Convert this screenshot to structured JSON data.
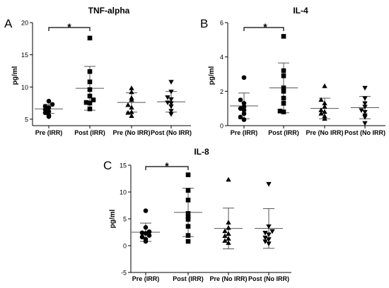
{
  "chart_data": [
    {
      "panel_label": "A",
      "title": "TNF-alpha",
      "type": "scatter",
      "ylabel": "pg/ml",
      "ylim": [
        4,
        20
      ],
      "yticks": [
        5,
        10,
        15,
        20
      ],
      "categories": [
        "Pre (IRR)",
        "Post (IRR)",
        "Pre (No IRR)",
        "Post (No IRR)"
      ],
      "markers": [
        "circle",
        "square",
        "triangle-up",
        "triangle-down"
      ],
      "series": [
        {
          "values": [
            5.4,
            5.6,
            6.0,
            6.2,
            6.5,
            6.8,
            7.0,
            7.3,
            7.8
          ],
          "mean": 6.6,
          "sd": 0.7
        },
        {
          "values": [
            6.6,
            7.5,
            7.6,
            8.0,
            8.6,
            9.6,
            10.8,
            12.4,
            17.6
          ],
          "mean": 9.8,
          "sd": 3.4
        },
        {
          "values": [
            5.5,
            6.0,
            6.1,
            6.8,
            7.2,
            8.0,
            8.3,
            9.2,
            9.8
          ],
          "mean": 7.6,
          "sd": 1.5
        },
        {
          "values": [
            5.8,
            6.3,
            7.0,
            7.5,
            7.6,
            8.1,
            8.4,
            9.3,
            10.8
          ],
          "mean": 7.7,
          "sd": 1.6
        }
      ],
      "significance": [
        {
          "from": "Pre (IRR)",
          "to": "Post (IRR)",
          "label": "*"
        }
      ]
    },
    {
      "panel_label": "B",
      "title": "IL-4",
      "type": "scatter",
      "ylabel": "pg/ml",
      "ylim": [
        0,
        6
      ],
      "yticks": [
        0,
        2,
        4,
        6
      ],
      "categories": [
        "Pre (IRR)",
        "Post (IRR)",
        "Pre (No IRR)",
        "Post (No IRR)"
      ],
      "markers": [
        "circle",
        "square",
        "triangle-up",
        "triangle-down"
      ],
      "series": [
        {
          "values": [
            0.35,
            0.5,
            0.7,
            0.9,
            1.0,
            1.1,
            1.3,
            1.5,
            2.8
          ],
          "mean": 1.15,
          "sd": 0.75
        },
        {
          "values": [
            0.8,
            0.85,
            1.3,
            1.6,
            2.0,
            2.2,
            2.9,
            3.2,
            5.2
          ],
          "mean": 2.2,
          "sd": 1.45
        },
        {
          "values": [
            0.4,
            0.55,
            0.7,
            0.8,
            0.9,
            1.1,
            1.3,
            1.5,
            2.3
          ],
          "mean": 1.0,
          "sd": 0.6
        },
        {
          "values": [
            0.15,
            0.5,
            0.6,
            0.8,
            0.9,
            1.1,
            1.3,
            1.6,
            2.2
          ],
          "mean": 1.05,
          "sd": 0.65
        }
      ],
      "significance": [
        {
          "from": "Pre (IRR)",
          "to": "Post (IRR)",
          "label": "*"
        }
      ]
    },
    {
      "panel_label": "C",
      "title": "IL-8",
      "type": "scatter",
      "ylabel": "pg/ml",
      "ylim": [
        -5,
        15
      ],
      "yticks": [
        -5,
        0,
        5,
        10,
        15
      ],
      "categories": [
        "Pre (IRR)",
        "Post (IRR)",
        "Pre (No IRR)",
        "Post (No IRR)"
      ],
      "markers": [
        "circle",
        "square",
        "triangle-up",
        "triangle-down"
      ],
      "series": [
        {
          "values": [
            0.8,
            1.2,
            1.6,
            1.9,
            2.3,
            2.4,
            2.6,
            3.4,
            6.5
          ],
          "mean": 2.5,
          "sd": 1.7
        },
        {
          "values": [
            0.8,
            1.9,
            3.6,
            4.9,
            5.4,
            6.0,
            8.5,
            10.3,
            13.2
          ],
          "mean": 6.2,
          "sd": 4.5
        },
        {
          "values": [
            0.5,
            0.9,
            1.3,
            1.8,
            2.2,
            2.7,
            3.3,
            4.3,
            12.3
          ],
          "mean": 3.2,
          "sd": 3.8
        },
        {
          "values": [
            0.4,
            0.8,
            1.2,
            1.5,
            2.1,
            2.4,
            2.7,
            3.6,
            11.5
          ],
          "mean": 3.2,
          "sd": 3.7
        }
      ],
      "significance": [
        {
          "from": "Pre (IRR)",
          "to": "Post (IRR)",
          "label": "*"
        }
      ]
    }
  ]
}
